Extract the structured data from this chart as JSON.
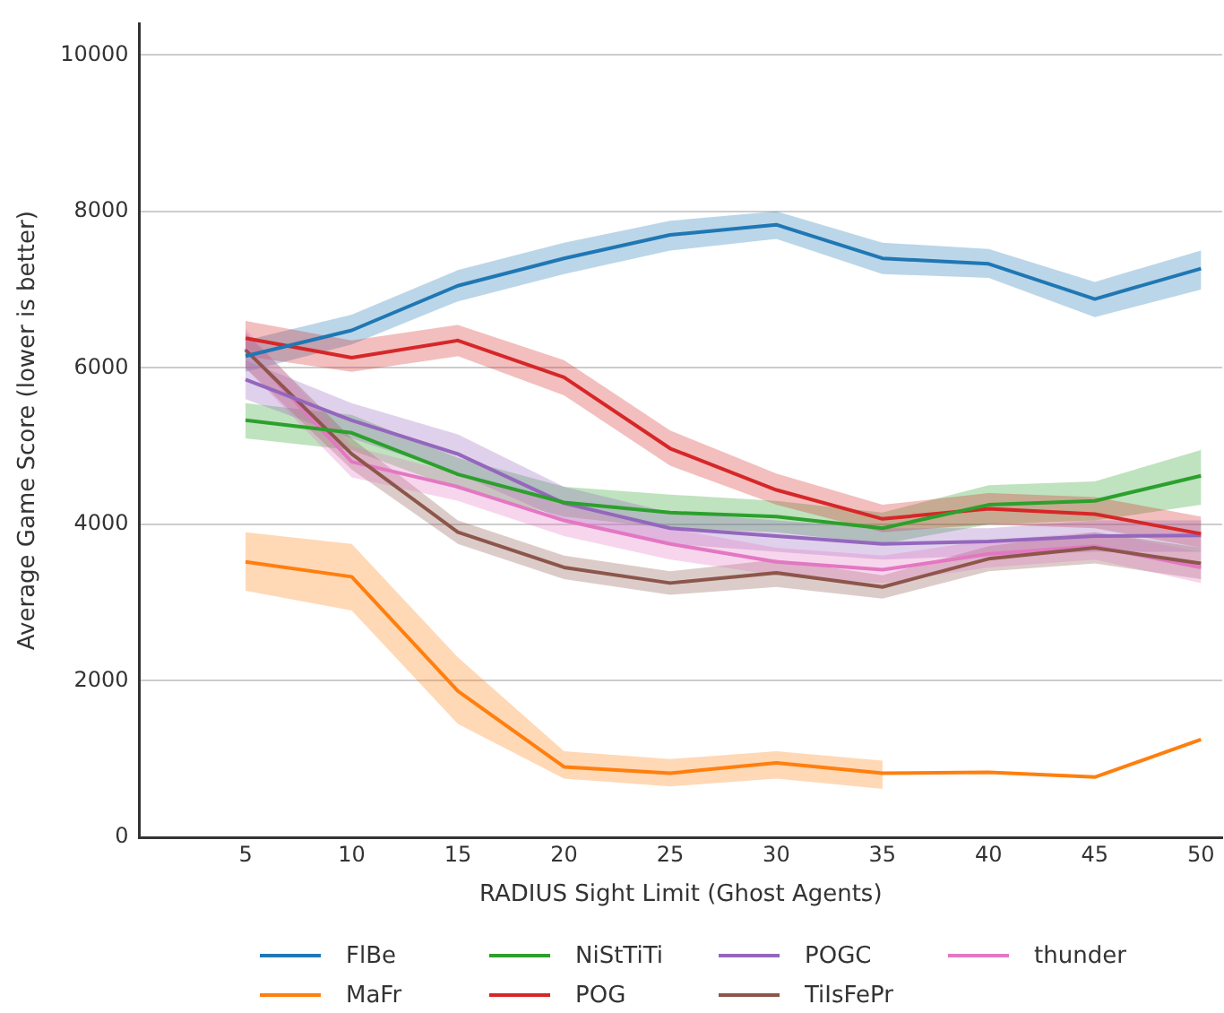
{
  "chart_data": {
    "type": "line",
    "xlabel": "RADIUS Sight Limit (Ghost Agents)",
    "ylabel": "Average Game Score (lower is better)",
    "x": [
      5,
      10,
      15,
      20,
      25,
      30,
      35,
      40,
      45,
      50
    ],
    "xlim": [
      0,
      51
    ],
    "xticks": [
      5,
      10,
      15,
      20,
      25,
      30,
      35,
      40,
      45,
      50
    ],
    "ylim": [
      0,
      10400
    ],
    "yticks": [
      0,
      2000,
      4000,
      6000,
      8000,
      10000
    ],
    "grid": "y",
    "legend": "bottom",
    "marker": "none",
    "line_style": "solid",
    "series": [
      {
        "name": "FlBe",
        "color": "#1f77b4",
        "values": [
          6150,
          6480,
          7050,
          7400,
          7700,
          7830,
          7400,
          7330,
          6880,
          7270
        ],
        "lower": [
          5950,
          6300,
          6850,
          7200,
          7500,
          7650,
          7200,
          7150,
          6650,
          7000
        ],
        "upper": [
          6350,
          6680,
          7250,
          7600,
          7880,
          8000,
          7600,
          7520,
          7100,
          7500
        ]
      },
      {
        "name": "MaFr",
        "color": "#ff7f0e",
        "values": [
          3520,
          3330,
          1870,
          900,
          820,
          950,
          820,
          830,
          770,
          1250
        ],
        "lower": [
          3150,
          2900,
          1450,
          750,
          650,
          750,
          620,
          null,
          null,
          null
        ],
        "upper": [
          3900,
          3750,
          2300,
          1100,
          1000,
          1100,
          980,
          null,
          null,
          null
        ]
      },
      {
        "name": "NiStTiTi",
        "color": "#2ca02c",
        "values": [
          5330,
          5170,
          4640,
          4280,
          4150,
          4100,
          3950,
          4250,
          4300,
          4620
        ],
        "lower": [
          5100,
          4950,
          4450,
          4100,
          3950,
          3900,
          3750,
          4000,
          4050,
          4250
        ],
        "upper": [
          5550,
          5400,
          4850,
          4480,
          4380,
          4300,
          4150,
          4500,
          4550,
          4950
        ]
      },
      {
        "name": "POG",
        "color": "#d62728",
        "values": [
          6380,
          6130,
          6350,
          5880,
          4970,
          4440,
          4070,
          4200,
          4130,
          3880
        ],
        "lower": [
          6150,
          5950,
          6150,
          5650,
          4750,
          4250,
          3900,
          4000,
          3950,
          3700
        ],
        "upper": [
          6600,
          6350,
          6550,
          6100,
          5200,
          4650,
          4250,
          4400,
          4350,
          4100
        ]
      },
      {
        "name": "POGC",
        "color": "#9467bd",
        "values": [
          5850,
          5330,
          4900,
          4270,
          3950,
          3850,
          3750,
          3780,
          3850,
          3860
        ],
        "lower": [
          5600,
          5100,
          4650,
          4050,
          3750,
          3650,
          3550,
          3600,
          3650,
          3650
        ],
        "upper": [
          6100,
          5550,
          5150,
          4480,
          4150,
          4050,
          3950,
          3950,
          4050,
          4050
        ]
      },
      {
        "name": "TiIsFePr",
        "color": "#8c564b",
        "values": [
          6230,
          4900,
          3900,
          3450,
          3250,
          3380,
          3200,
          3560,
          3700,
          3500
        ],
        "lower": [
          6000,
          4700,
          3750,
          3300,
          3100,
          3200,
          3050,
          3400,
          3500,
          3300
        ],
        "upper": [
          6450,
          5100,
          4050,
          3600,
          3400,
          3550,
          3350,
          3720,
          3900,
          3700
        ]
      },
      {
        "name": "thunder",
        "color": "#e377c2",
        "values": [
          6250,
          4800,
          4480,
          4050,
          3750,
          3520,
          3420,
          3620,
          3720,
          3450
        ],
        "lower": [
          6000,
          4600,
          4300,
          3850,
          3550,
          3350,
          3250,
          3450,
          3550,
          3250
        ],
        "upper": [
          6500,
          5000,
          4650,
          4250,
          3950,
          3700,
          3600,
          3800,
          3900,
          3650
        ]
      }
    ]
  }
}
